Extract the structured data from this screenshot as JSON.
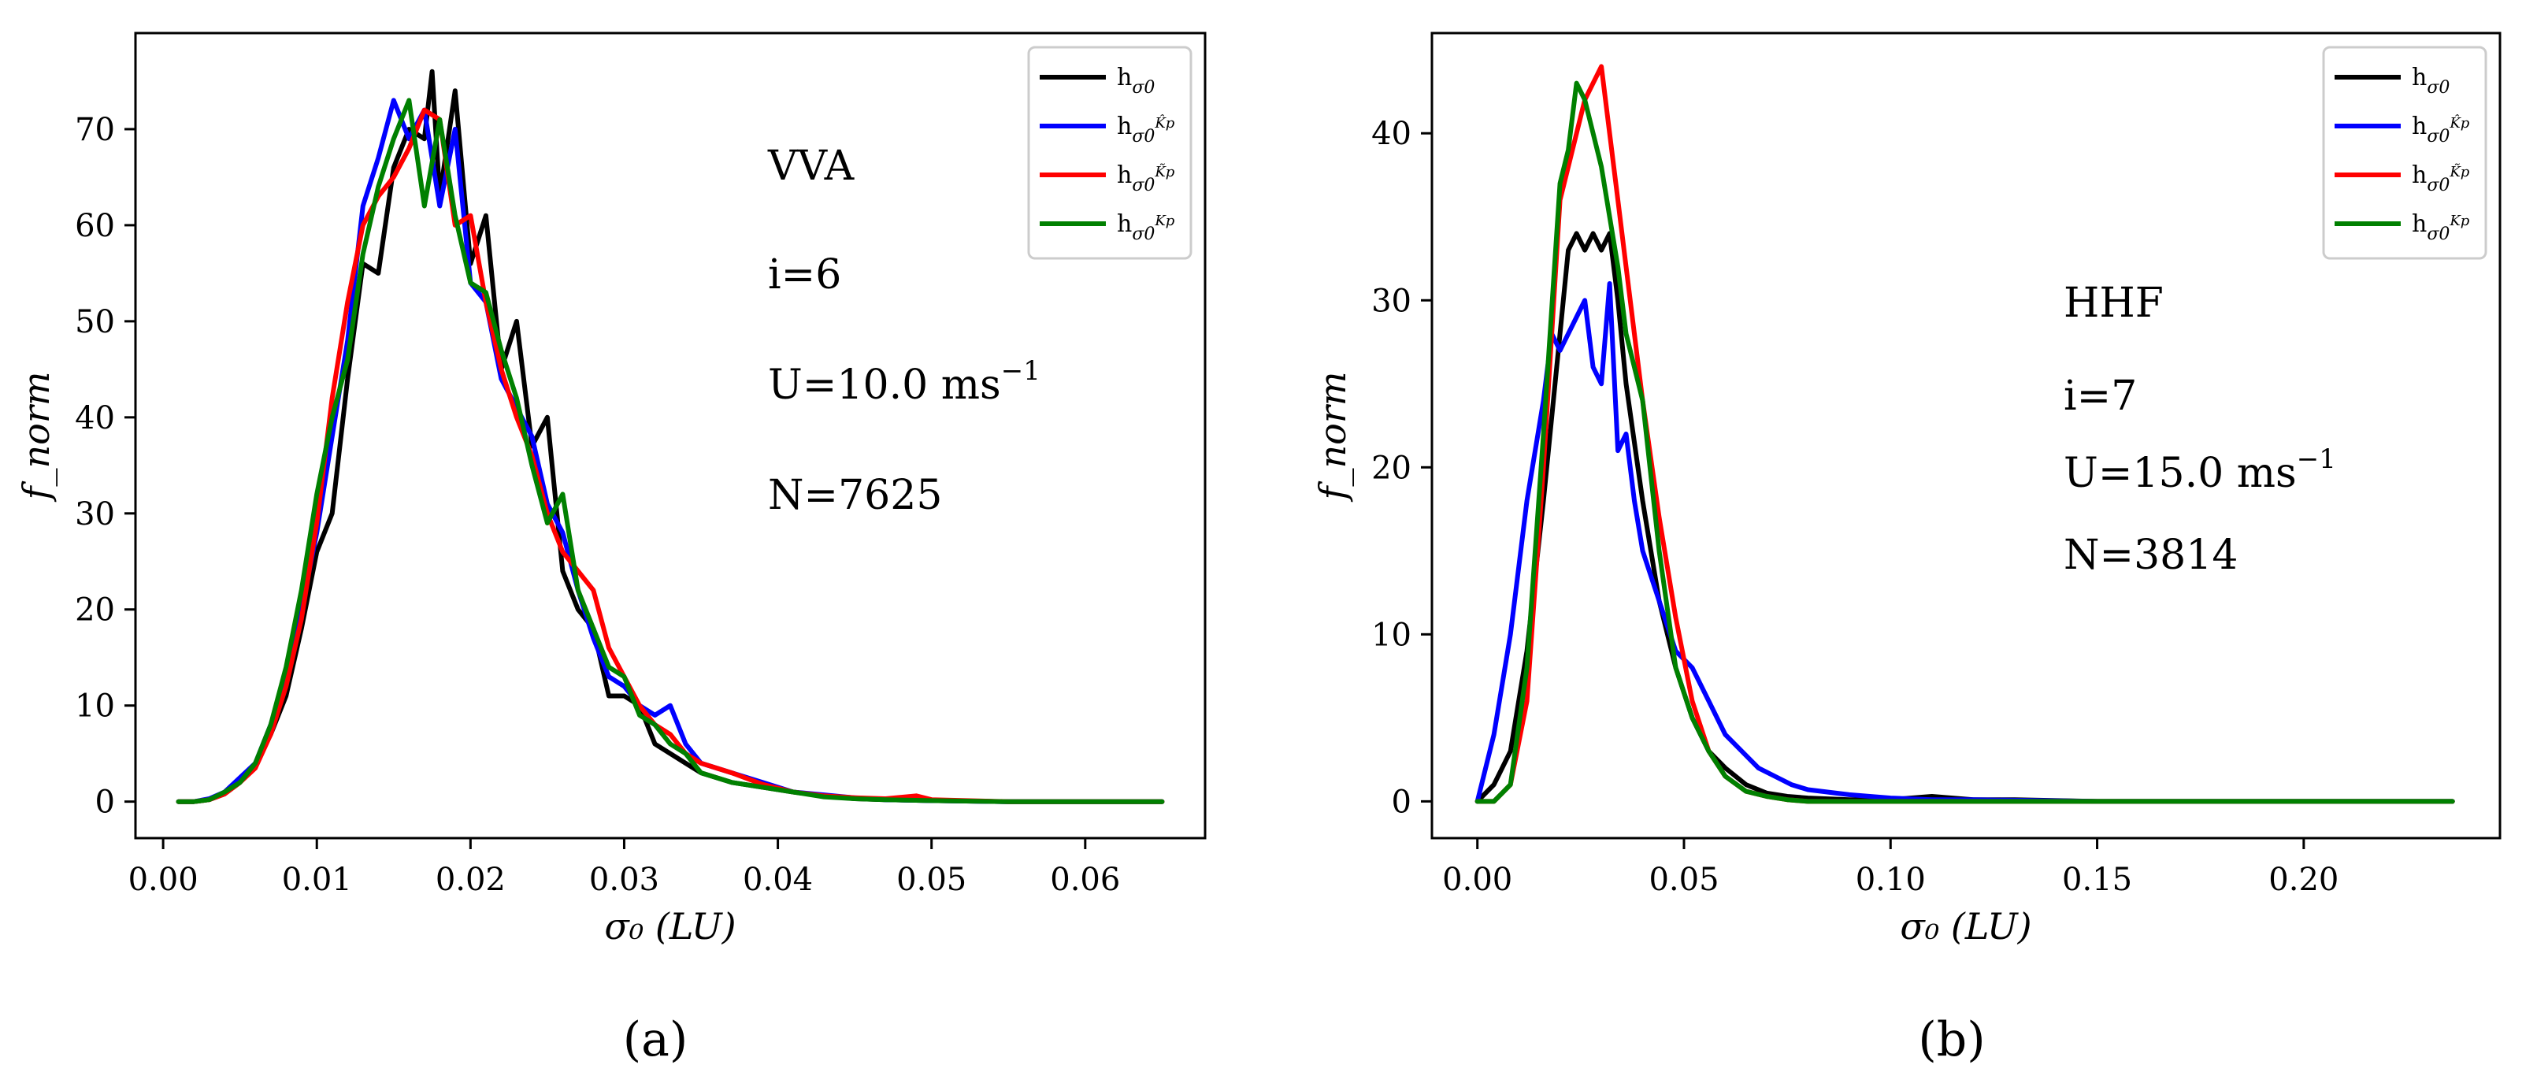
{
  "chart_data": [
    {
      "type": "line",
      "panel_label": "(a)",
      "xlabel": "σ₀ (LU)",
      "ylabel": "f_norm",
      "xlim": [
        -0.0018,
        0.0678
      ],
      "ylim": [
        -3.8,
        80
      ],
      "xticks": [
        0.0,
        0.01,
        0.02,
        0.03,
        0.04,
        0.05,
        0.06
      ],
      "xtick_labels": [
        "0.00",
        "0.01",
        "0.02",
        "0.03",
        "0.04",
        "0.05",
        "0.06"
      ],
      "yticks": [
        0,
        10,
        20,
        30,
        40,
        50,
        60,
        70
      ],
      "ytick_labels": [
        "0",
        "10",
        "20",
        "30",
        "40",
        "50",
        "60",
        "70"
      ],
      "annotations": [
        "VVA",
        "i=6",
        "U=10.0 ms",
        "N=7625"
      ],
      "annotation_superscript": "−1",
      "legend_position": "top-right",
      "series": [
        {
          "name": "h_σ0",
          "label_main": "h",
          "label_sub": "σ0",
          "color": "#000000",
          "x": [
            0.001,
            0.002,
            0.003,
            0.004,
            0.005,
            0.006,
            0.007,
            0.008,
            0.009,
            0.01,
            0.011,
            0.012,
            0.013,
            0.014,
            0.015,
            0.016,
            0.017,
            0.0175,
            0.018,
            0.019,
            0.02,
            0.021,
            0.022,
            0.023,
            0.024,
            0.025,
            0.026,
            0.027,
            0.028,
            0.029,
            0.03,
            0.031,
            0.032,
            0.033,
            0.034,
            0.035,
            0.037,
            0.039,
            0.041,
            0.043,
            0.045,
            0.047,
            0.05,
            0.055,
            0.06,
            0.065
          ],
          "y": [
            0,
            0,
            0.2,
            0.8,
            2,
            4,
            7,
            11,
            18,
            26,
            30,
            44,
            56,
            55,
            66,
            70,
            69,
            76,
            63,
            74,
            56,
            61,
            45,
            50,
            37,
            40,
            24,
            20,
            18,
            11,
            11,
            10,
            6,
            5,
            4,
            3,
            2,
            1.5,
            1,
            0.6,
            0.3,
            0.2,
            0.1,
            0,
            0,
            0
          ]
        },
        {
          "name": "h_σ0^Kp_hat",
          "label_main": "h",
          "label_sub": "σ0",
          "label_sup": "K̂p",
          "color": "#0000ff",
          "x": [
            0.001,
            0.002,
            0.003,
            0.004,
            0.005,
            0.006,
            0.007,
            0.008,
            0.009,
            0.01,
            0.011,
            0.012,
            0.013,
            0.014,
            0.015,
            0.016,
            0.017,
            0.018,
            0.019,
            0.02,
            0.021,
            0.022,
            0.023,
            0.024,
            0.025,
            0.026,
            0.027,
            0.028,
            0.029,
            0.03,
            0.031,
            0.032,
            0.033,
            0.034,
            0.035,
            0.037,
            0.039,
            0.041,
            0.043,
            0.045,
            0.047,
            0.05,
            0.055,
            0.06,
            0.065
          ],
          "y": [
            0,
            0,
            0.3,
            1,
            2.5,
            4,
            8,
            13,
            20,
            28,
            38,
            48,
            62,
            67,
            73,
            69,
            72,
            62,
            70,
            54,
            52,
            44,
            41,
            38,
            31,
            28,
            22,
            17,
            13,
            12,
            10,
            9,
            10,
            6,
            4,
            3,
            2,
            1,
            0.7,
            0.4,
            0.2,
            0.1,
            0,
            0,
            0
          ]
        },
        {
          "name": "h_σ0^Kp_tilde",
          "label_main": "h",
          "label_sub": "σ0",
          "label_sup": "K̃p",
          "color": "#ff0000",
          "x": [
            0.001,
            0.002,
            0.003,
            0.004,
            0.005,
            0.006,
            0.007,
            0.008,
            0.009,
            0.01,
            0.011,
            0.012,
            0.013,
            0.014,
            0.015,
            0.016,
            0.017,
            0.018,
            0.019,
            0.02,
            0.021,
            0.022,
            0.023,
            0.024,
            0.025,
            0.026,
            0.027,
            0.028,
            0.029,
            0.03,
            0.031,
            0.032,
            0.033,
            0.034,
            0.035,
            0.037,
            0.039,
            0.041,
            0.043,
            0.045,
            0.047,
            0.049,
            0.05,
            0.055,
            0.06,
            0.065
          ],
          "y": [
            0,
            0,
            0.2,
            0.8,
            2,
            3.5,
            7,
            12,
            19,
            29,
            42,
            52,
            60,
            63,
            65,
            68,
            72,
            71,
            60,
            61,
            52,
            45,
            40,
            36,
            30,
            26,
            24,
            22,
            16,
            13,
            10,
            8,
            7,
            5,
            4,
            3,
            1.8,
            1,
            0.6,
            0.4,
            0.3,
            0.6,
            0.2,
            0,
            0,
            0
          ]
        },
        {
          "name": "h_σ0^Kp",
          "label_main": "h",
          "label_sub": "σ0",
          "label_sup": "Kp",
          "color": "#008000",
          "x": [
            0.001,
            0.002,
            0.003,
            0.004,
            0.005,
            0.006,
            0.007,
            0.008,
            0.009,
            0.01,
            0.011,
            0.012,
            0.013,
            0.014,
            0.015,
            0.016,
            0.017,
            0.018,
            0.019,
            0.02,
            0.021,
            0.022,
            0.023,
            0.024,
            0.025,
            0.026,
            0.027,
            0.028,
            0.029,
            0.03,
            0.031,
            0.032,
            0.033,
            0.034,
            0.035,
            0.037,
            0.039,
            0.041,
            0.043,
            0.045,
            0.047,
            0.05,
            0.055,
            0.06,
            0.065
          ],
          "y": [
            0,
            0,
            0.2,
            1,
            2,
            4,
            8,
            14,
            22,
            32,
            40,
            46,
            57,
            64,
            69,
            73,
            62,
            71,
            61,
            54,
            53,
            47,
            42,
            35,
            29,
            32,
            22,
            18,
            14,
            13,
            9,
            8,
            6,
            5,
            3,
            2,
            1.5,
            1,
            0.5,
            0.3,
            0.2,
            0.1,
            0,
            0,
            0
          ]
        }
      ]
    },
    {
      "type": "line",
      "panel_label": "(b)",
      "xlabel": "σ₀ (LU)",
      "ylabel": "f_norm",
      "xlim": [
        -0.011,
        0.2475
      ],
      "ylim": [
        -2.2,
        46
      ],
      "xticks": [
        0.0,
        0.05,
        0.1,
        0.15,
        0.2
      ],
      "xtick_labels": [
        "0.00",
        "0.05",
        "0.10",
        "0.15",
        "0.20"
      ],
      "yticks": [
        0,
        10,
        20,
        30,
        40
      ],
      "ytick_labels": [
        "0",
        "10",
        "20",
        "30",
        "40"
      ],
      "annotations": [
        "HHF",
        "i=7",
        "U=15.0 ms",
        "N=3814"
      ],
      "annotation_superscript": "−1",
      "legend_position": "top-right",
      "series": [
        {
          "name": "h_σ0",
          "label_main": "h",
          "label_sub": "σ0",
          "color": "#000000",
          "x": [
            0.0,
            0.004,
            0.008,
            0.012,
            0.016,
            0.02,
            0.022,
            0.024,
            0.026,
            0.028,
            0.03,
            0.032,
            0.034,
            0.036,
            0.04,
            0.044,
            0.048,
            0.052,
            0.056,
            0.06,
            0.065,
            0.07,
            0.075,
            0.08,
            0.09,
            0.1,
            0.11,
            0.12,
            0.13,
            0.15,
            0.2,
            0.236
          ],
          "y": [
            0,
            1,
            3,
            9,
            18,
            28,
            33,
            34,
            33,
            34,
            33,
            34,
            30,
            25,
            18,
            12,
            8,
            5,
            3,
            2,
            1,
            0.5,
            0.3,
            0.2,
            0.1,
            0.1,
            0.3,
            0.1,
            0.1,
            0,
            0,
            0
          ]
        },
        {
          "name": "h_σ0^Kp_hat",
          "label_main": "h",
          "label_sub": "σ0",
          "label_sup": "K̂p",
          "color": "#0000ff",
          "x": [
            0.0,
            0.004,
            0.008,
            0.012,
            0.016,
            0.018,
            0.02,
            0.022,
            0.024,
            0.026,
            0.028,
            0.03,
            0.032,
            0.034,
            0.036,
            0.038,
            0.04,
            0.044,
            0.048,
            0.052,
            0.056,
            0.06,
            0.064,
            0.068,
            0.072,
            0.076,
            0.08,
            0.09,
            0.1,
            0.11,
            0.12,
            0.15,
            0.2,
            0.236
          ],
          "y": [
            0,
            4,
            10,
            18,
            24,
            28,
            27,
            28,
            29,
            30,
            26,
            25,
            31,
            21,
            22,
            18,
            15,
            12,
            9,
            8,
            6,
            4,
            3,
            2,
            1.5,
            1,
            0.7,
            0.4,
            0.2,
            0.1,
            0.1,
            0,
            0,
            0
          ]
        },
        {
          "name": "h_σ0^Kp_tilde",
          "label_main": "h",
          "label_sub": "σ0",
          "label_sup": "K̃p",
          "color": "#ff0000",
          "x": [
            0.0,
            0.004,
            0.008,
            0.012,
            0.016,
            0.02,
            0.022,
            0.024,
            0.026,
            0.028,
            0.03,
            0.032,
            0.034,
            0.036,
            0.04,
            0.044,
            0.048,
            0.052,
            0.056,
            0.06,
            0.065,
            0.07,
            0.075,
            0.08,
            0.09,
            0.1,
            0.12,
            0.15,
            0.2,
            0.236
          ],
          "y": [
            0,
            0,
            1,
            6,
            20,
            36,
            38,
            40,
            42,
            43,
            44,
            40,
            36,
            32,
            24,
            17,
            11,
            6,
            3,
            1.5,
            0.6,
            0.3,
            0.1,
            0,
            0,
            0,
            0,
            0,
            0,
            0
          ]
        },
        {
          "name": "h_σ0^Kp",
          "label_main": "h",
          "label_sub": "σ0",
          "label_sup": "Kp",
          "color": "#008000",
          "x": [
            0.0,
            0.004,
            0.008,
            0.012,
            0.016,
            0.02,
            0.022,
            0.024,
            0.026,
            0.028,
            0.03,
            0.032,
            0.034,
            0.036,
            0.04,
            0.044,
            0.048,
            0.052,
            0.056,
            0.06,
            0.065,
            0.07,
            0.075,
            0.08,
            0.09,
            0.1,
            0.12,
            0.15,
            0.2,
            0.236
          ],
          "y": [
            0,
            0,
            1,
            8,
            22,
            37,
            39,
            43,
            42,
            40,
            38,
            35,
            32,
            28,
            24,
            15,
            8,
            5,
            3,
            1.5,
            0.6,
            0.3,
            0.1,
            0,
            0,
            0,
            0,
            0,
            0,
            0
          ]
        }
      ]
    }
  ]
}
